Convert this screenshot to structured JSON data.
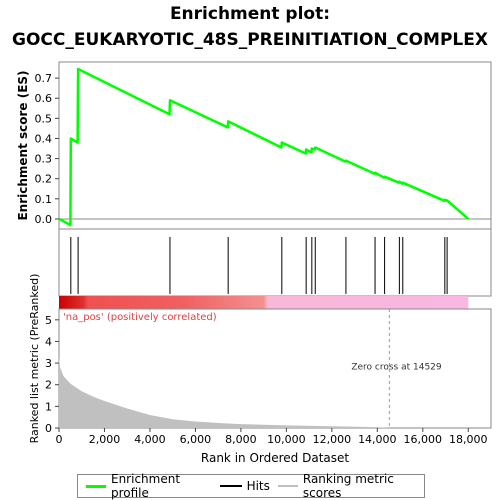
{
  "title_line1": "Enrichment plot:",
  "title_line2": "GOCC_EUKARYOTIC_48S_PREINITIATION_COMPLEX",
  "chart_data": {
    "type": "line",
    "es_panel": {
      "ylabel": "Enrichment score (ES)",
      "ylim": [
        -0.05,
        0.78
      ],
      "yticks": [
        "0.0",
        "0.1",
        "0.2",
        "0.3",
        "0.4",
        "0.5",
        "0.6",
        "0.7"
      ],
      "ytick_values": [
        0.0,
        0.1,
        0.2,
        0.3,
        0.4,
        0.5,
        0.6,
        0.7
      ],
      "series": [
        {
          "name": "Enrichment profile",
          "color": "#00ff00",
          "x": [
            0,
            500,
            520,
            820,
            840,
            4860,
            4880,
            7420,
            7440,
            9780,
            9800,
            10850,
            10870,
            11100,
            11120,
            11250,
            11270,
            12600,
            12620,
            13880,
            13900,
            14300,
            14320,
            14950,
            14970,
            15100,
            15120,
            16950,
            16970,
            17050,
            17070,
            18000
          ],
          "y": [
            0.0,
            -0.03,
            0.4,
            0.38,
            0.745,
            0.52,
            0.59,
            0.455,
            0.485,
            0.355,
            0.38,
            0.325,
            0.345,
            0.33,
            0.35,
            0.345,
            0.355,
            0.285,
            0.29,
            0.225,
            0.23,
            0.205,
            0.21,
            0.18,
            0.185,
            0.175,
            0.18,
            0.09,
            0.095,
            0.09,
            0.092,
            0.0
          ]
        }
      ]
    },
    "hits": [
      520,
      840,
      4880,
      7440,
      9800,
      10870,
      11120,
      11270,
      12620,
      13900,
      14320,
      14970,
      15120,
      16970,
      17070
    ],
    "metric_panel": {
      "ylabel": "Ranked list metric (PreRanked)",
      "ylim": [
        0,
        5.5
      ],
      "yticks": [
        "0",
        "1",
        "2",
        "3",
        "4",
        "5"
      ],
      "ytick_values": [
        0,
        1,
        2,
        3,
        4,
        5
      ],
      "annotation_pos": "'na_pos' (positively correlated)",
      "annotation_zero": "Zero cross at 14529",
      "zero_cross": 14529,
      "fill_color": "#c0c0c0",
      "curve_x": [
        0,
        50,
        200,
        500,
        1000,
        1500,
        2000,
        3000,
        4000,
        5000,
        6000,
        7000,
        8000,
        10000,
        12000,
        14000,
        14529
      ],
      "curve_y": [
        3.3,
        2.8,
        2.4,
        2.05,
        1.7,
        1.45,
        1.25,
        0.9,
        0.6,
        0.4,
        0.3,
        0.23,
        0.18,
        0.12,
        0.08,
        0.04,
        0.0
      ]
    },
    "xaxis": {
      "xlabel": "Rank in Ordered Dataset",
      "xlim": [
        0,
        19000
      ],
      "xticks": [
        "0",
        "2,000",
        "4,000",
        "6,000",
        "8,000",
        "10,000",
        "12,000",
        "14,000",
        "16,000",
        "18,000"
      ],
      "xtick_values": [
        0,
        2000,
        4000,
        6000,
        8000,
        10000,
        12000,
        14000,
        16000,
        18000
      ]
    },
    "legend": [
      {
        "label": "Enrichment profile",
        "color": "#00ff00"
      },
      {
        "label": "Hits",
        "color": "#000000"
      },
      {
        "label": "Ranking metric scores",
        "color": "#c0c0c0"
      }
    ],
    "legend_position": "bottom"
  }
}
